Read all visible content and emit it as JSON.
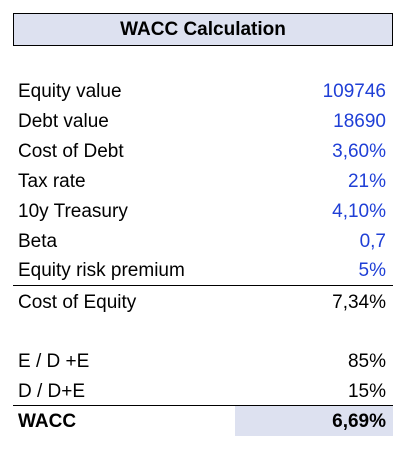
{
  "title": "WACC Calculation",
  "inputs": [
    {
      "label": "Equity value",
      "value": "109746"
    },
    {
      "label": "Debt value",
      "value": "18690"
    },
    {
      "label": "Cost of Debt",
      "value": "3,60%"
    },
    {
      "label": "Tax rate",
      "value": "21%"
    },
    {
      "label": "10y Treasury",
      "value": "4,10%"
    },
    {
      "label": "Beta",
      "value": "0,7"
    },
    {
      "label": "Equity risk premium",
      "value": "5%"
    }
  ],
  "cost_of_equity": {
    "label": "Cost of Equity",
    "value": "7,34%"
  },
  "weights": [
    {
      "label": "E / D +E",
      "value": "85%"
    },
    {
      "label": "D / D+E",
      "value": "15%"
    }
  ],
  "wacc": {
    "label": "WACC",
    "value": "6,69%"
  },
  "colors": {
    "input_text": "#1f3fd6",
    "highlight_fill": "#dde1f0"
  }
}
